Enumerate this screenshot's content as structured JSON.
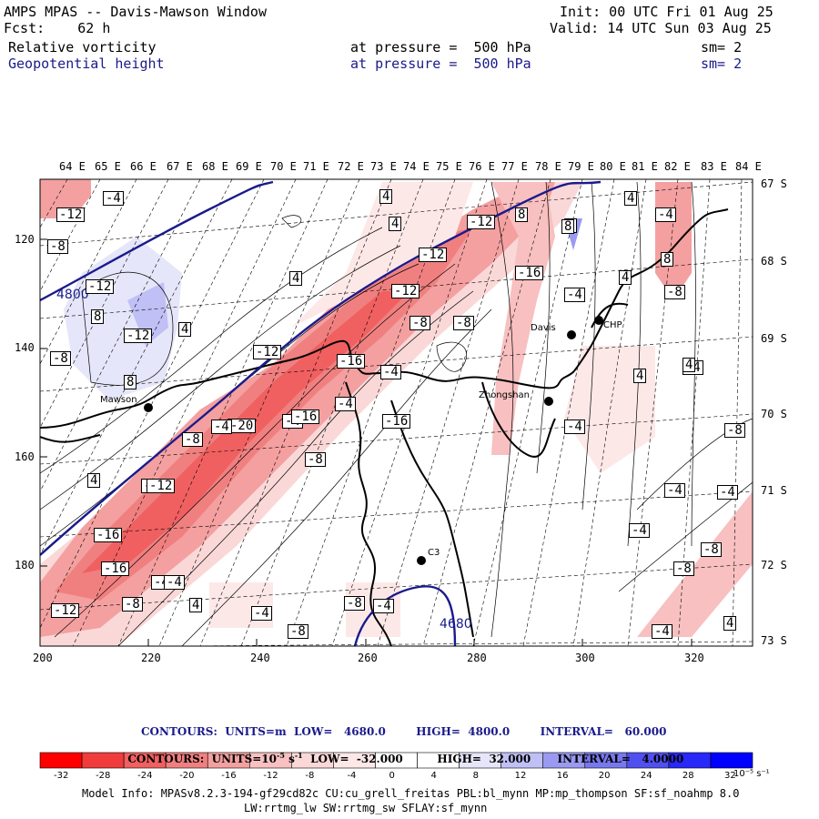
{
  "header": {
    "model": "AMPS MPAS -- Davis-Mawson Window",
    "forecast": "Fcst:    62 h",
    "init": "Init: 00 UTC Fri 01 Aug 25",
    "valid": "Valid: 14 UTC Sun 03 Aug 25",
    "field1": {
      "name": "Relative vorticity",
      "pressure": "at pressure =  500 hPa",
      "sm": "sm= 2"
    },
    "field2": {
      "name": "Geopotential height",
      "pressure": "at pressure =  500 hPa",
      "sm": "sm= 2"
    }
  },
  "axes": {
    "lon_labels": [
      "64 E",
      "65 E",
      "66 E",
      "67 E",
      "68 E",
      "69 E",
      "70 E",
      "71 E",
      "72 E",
      "73 E",
      "74 E",
      "75 E",
      "76 E",
      "77 E",
      "78 E",
      "79 E",
      "80 E",
      "81 E",
      "82 E",
      "83 E",
      "84 E"
    ],
    "lat_labels": [
      "67 S",
      "68 S",
      "69 S",
      "70 S",
      "71 S",
      "72 S",
      "73 S"
    ],
    "y_grid_labels": [
      "120",
      "140",
      "160",
      "180"
    ],
    "x_grid_labels": [
      "200",
      "220",
      "240",
      "260",
      "280",
      "300",
      "320"
    ]
  },
  "stations": [
    {
      "name": "Mawson"
    },
    {
      "name": "Zhongshan"
    },
    {
      "name": "Davis"
    },
    {
      "name": "CHP"
    },
    {
      "name": "C3"
    }
  ],
  "height_contour_labels": [
    "4800",
    "4680"
  ],
  "vorticity_labels": [
    "-4",
    "-12",
    "-8",
    "4",
    "8",
    "-12",
    "4",
    "8",
    "-4",
    "4",
    "-12",
    "-16",
    "8",
    "-12",
    "-8",
    "4",
    "-12",
    "-4",
    "-8",
    "-8",
    "-16",
    "-4",
    "-8",
    "-12",
    "-16",
    "-20",
    "-16",
    "-8",
    "-4",
    "-8",
    "-12",
    "-16",
    "-16",
    "-8",
    "-4",
    "4",
    "-4",
    "-8",
    "-4",
    "-12",
    "-4",
    "4",
    "-4",
    "-4",
    "-8",
    "-8",
    "-4",
    "4",
    "8",
    "-4",
    "8",
    "4",
    "-4",
    "4",
    "-8",
    "-12",
    "4",
    "-12",
    "-4",
    "8",
    "4",
    "-8",
    "-4",
    "-4"
  ],
  "colorbar": {
    "ticks": [
      "-32",
      "-28",
      "-24",
      "-20",
      "-16",
      "-12",
      "-8",
      "-4",
      "0",
      "4",
      "8",
      "12",
      "16",
      "20",
      "24",
      "28",
      "32"
    ],
    "unit": "10⁻⁵ s⁻¹",
    "colors": [
      "#ff0000",
      "#f03c3c",
      "#f06060",
      "#f08080",
      "#f4a0a0",
      "#f8c0c0",
      "#fad8d8",
      "#fde8e8",
      "#ffffff",
      "#ffffff",
      "#e6e6fa",
      "#c0c0f6",
      "#9a9af2",
      "#7878ee",
      "#5050f0",
      "#2828f8",
      "#0000ff"
    ]
  },
  "contour_info": {
    "line1": "CONTOURS:  UNITS=m  LOW=   4680.0        HIGH=  4800.0        INTERVAL=   60.000",
    "line2": "CONTOURS:  UNITS=10",
    "line2b": "s",
    "line2c": "  LOW=  -32.000         HIGH=  32.000       INTERVAL=   4.0000"
  },
  "model_info": {
    "line1": "Model Info: MPASv8.2.3-194-gf29cd82c CU:cu_grell_freitas PBL:bl_mynn MP:mp_thompson SF:sf_noahmp 8.0",
    "line2": "LW:rrtmg_lw SW:rrtmg_sw SFLAY:sf_mynn"
  }
}
